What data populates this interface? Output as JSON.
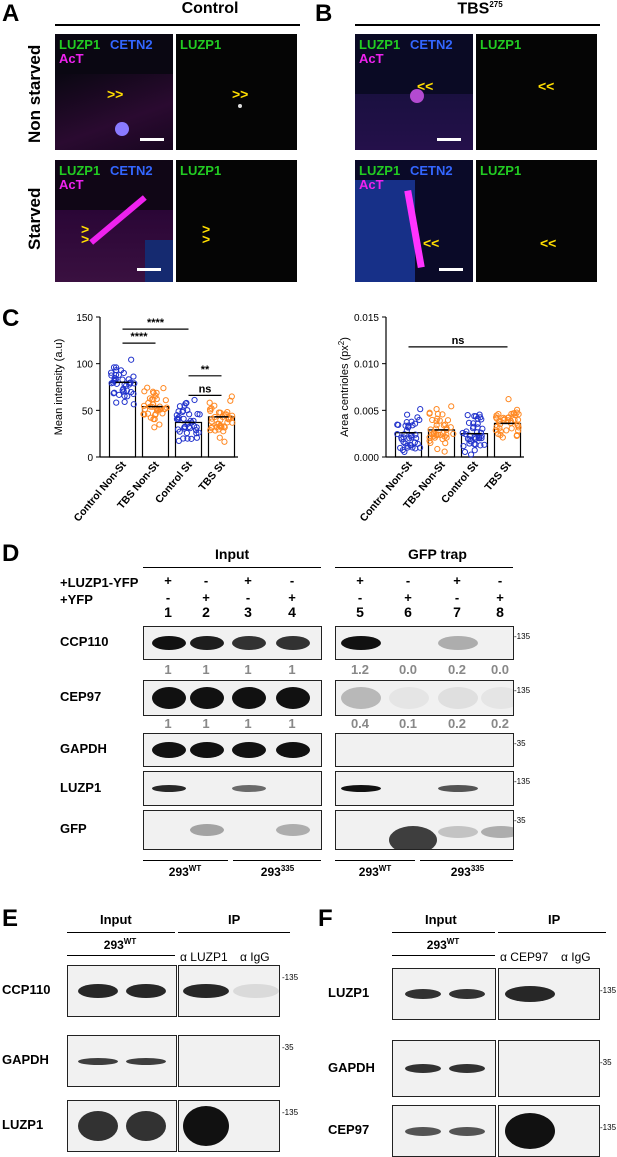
{
  "panelA": {
    "letter": "A",
    "title": "Control",
    "row_top": "Non starved",
    "row_bottom": "Starved",
    "ch_luzp1": "LUZP1",
    "ch_cetn2": "CETN2",
    "ch_act": "AcT"
  },
  "panelB": {
    "letter": "B",
    "title_main": "TBS",
    "title_sup": "275"
  },
  "panelC": {
    "letter": "C",
    "chart_data": [
      {
        "type": "bar",
        "categories": [
          "Control Non-St",
          "TBS Non-St",
          "Control St",
          "TBS St"
        ],
        "values": [
          80,
          54,
          37,
          43
        ],
        "ylabel": "Mean intensity (a.u)",
        "ylim": [
          0,
          150
        ],
        "yticks": [
          "0",
          "50",
          "100",
          "150"
        ],
        "colors": [
          "#2233cc",
          "#ff8822",
          "#2233cc",
          "#ff8822"
        ],
        "significance": [
          "****",
          "****",
          "**",
          "ns"
        ]
      },
      {
        "type": "bar",
        "categories": [
          "Control Non-St",
          "TBS Non-St",
          "Control St",
          "TBS St"
        ],
        "values": [
          0.0026,
          0.0029,
          0.0025,
          0.0036
        ],
        "ylabel": "Area centrioles (px",
        "ylabel_sup": "2",
        "ylabel_end": ")",
        "ylim": [
          0,
          0.015
        ],
        "yticks": [
          "0.000",
          "0.005",
          "0.010",
          "0.015"
        ],
        "colors": [
          "#2233cc",
          "#ff8822",
          "#2233cc",
          "#ff8822"
        ],
        "significance": [
          "ns"
        ]
      }
    ]
  },
  "panelD": {
    "letter": "D",
    "input": "Input",
    "gfp_trap": "GFP trap",
    "luzp1_yfp": "+LUZP1-YFP",
    "yfp": "+YFP",
    "plus": "+",
    "minus": "-",
    "lanes": [
      "1",
      "2",
      "3",
      "4",
      "5",
      "6",
      "7",
      "8"
    ],
    "rows": [
      "CCP110",
      "CEP97",
      "GAPDH",
      "LUZP1",
      "GFP"
    ],
    "ccp110_quant": [
      "1",
      "1",
      "1",
      "1",
      "1.2",
      "0.0",
      "0.2",
      "0.0"
    ],
    "cep97_quant": [
      "1",
      "1",
      "1",
      "1",
      "0.4",
      "0.1",
      "0.2",
      "0.2"
    ],
    "mw_135": "-135",
    "mw_35": "-35",
    "cell_293": "293",
    "sup_wt": "WT",
    "sup_335": "335"
  },
  "panelE": {
    "letter": "E",
    "input": "Input",
    "ip": "IP",
    "cell": "293",
    "sup_wt": "WT",
    "anti_luzp1": "α LUZP1",
    "anti_igg": "α IgG",
    "rows": [
      "CCP110",
      "GAPDH",
      "LUZP1"
    ]
  },
  "panelF": {
    "letter": "F",
    "input": "Input",
    "ip": "IP",
    "cell": "293",
    "sup_wt": "WT",
    "anti_cep97": "α CEP97",
    "anti_igg": "α IgG",
    "rows": [
      "LUZP1",
      "GAPDH",
      "CEP97"
    ]
  }
}
